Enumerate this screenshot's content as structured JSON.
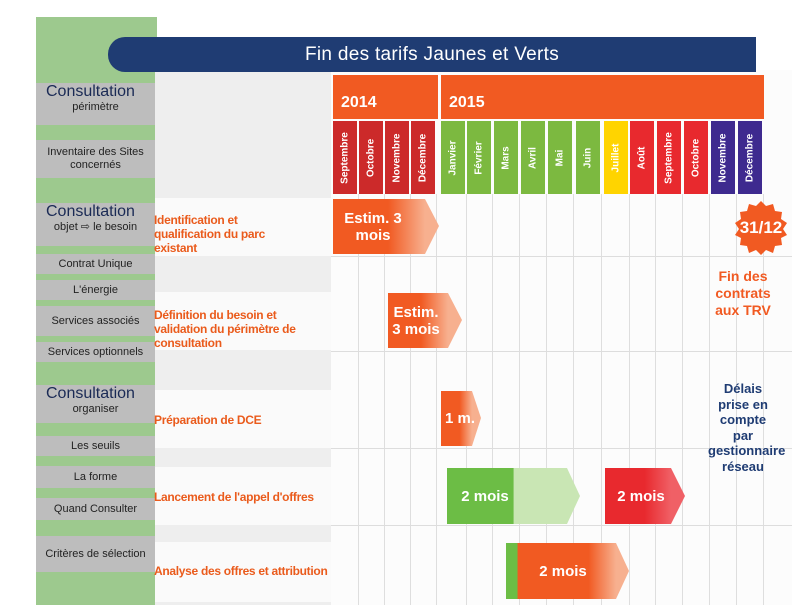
{
  "title": "Fin des tarifs Jaunes et Verts",
  "sidebar": {
    "consultation1": {
      "title": "Consultation",
      "sub": "périmètre"
    },
    "inventaire": "Inventaire des Sites concernés",
    "consultation2": {
      "title": "Consultation",
      "sub": "objet ⇨ le besoin"
    },
    "contrat_unique": "Contrat Unique",
    "energie": "L'énergie",
    "services_associes": "Services associés",
    "services_optionnels": "Services optionnels",
    "consultation3": {
      "title": "Consultation",
      "sub": "organiser"
    },
    "seuils": "Les seuils",
    "forme": "La forme",
    "quand": "Quand Consulter",
    "criteres": "Critères de sélection"
  },
  "years": [
    "2014",
    "2015"
  ],
  "months": [
    "Septembre",
    "Octobre",
    "Novembre",
    "Décembre",
    "Janvier",
    "Février",
    "Mars",
    "Avril",
    "Mai",
    "Juin",
    "Juillet",
    "Août",
    "Septembre",
    "Octobre",
    "Novembre",
    "Décembre"
  ],
  "month_colors": [
    "#cc2a2a",
    "#cc2a2a",
    "#cc2a2a",
    "#cc2a2a",
    "#7cb940",
    "#7cb940",
    "#7cb940",
    "#7cb940",
    "#7cb940",
    "#7cb940",
    "#ffd400",
    "#e8292e",
    "#e8292e",
    "#e8292e",
    "#3e2a8f",
    "#3e2a8f"
  ],
  "tasks": [
    "Identification et qualification du parc existant",
    "Définition du besoin et validation du périmètre de consultation",
    "Préparation de DCE",
    "Lancement de l'appel d'offres",
    "Analyse des offres et attribution"
  ],
  "arrows": {
    "estim1": "Estim. 3 mois",
    "estim2": "Estim. 3 mois",
    "one_month": "1 m.",
    "two_months_a": "2 mois",
    "two_months_b": "2 mois",
    "two_months_c": "2 mois"
  },
  "deadline": "31/12",
  "fin_contrats": "Fin des contrats aux TRV",
  "delais": "Délais prise en compte par gestionnaire réseau",
  "colors": {
    "orange": "#f15a22",
    "green": "#6cbd45",
    "red": "#e8292e",
    "navy": "#1f3c73",
    "sidebar_green": "#9dc98e"
  }
}
